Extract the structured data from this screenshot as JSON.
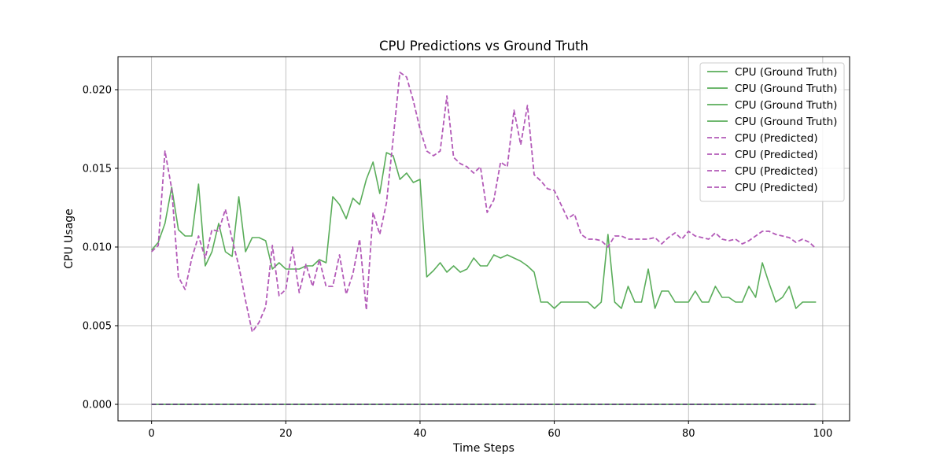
{
  "chart_data": {
    "type": "line",
    "title": "CPU Predictions vs Ground Truth",
    "xlabel": "Time Steps",
    "ylabel": "CPU Usage",
    "xlim": [
      -5,
      104
    ],
    "ylim": [
      -0.00105,
      0.0221
    ],
    "x_ticks": [
      0,
      20,
      40,
      60,
      80,
      100
    ],
    "y_ticks": [
      0.0,
      0.005,
      0.01,
      0.015,
      0.02
    ],
    "y_tick_labels": [
      "0.000",
      "0.005",
      "0.010",
      "0.015",
      "0.020"
    ],
    "grid": true,
    "legend_position": "top-right",
    "colors": {
      "ground_truth": "#5aad5a",
      "predicted": "#b35ab8",
      "zero_line_dark": "#5a2a7a"
    },
    "series": [
      {
        "name": "CPU (Ground Truth)",
        "style": "solid",
        "color": "#5aad5a",
        "values": [
          0.0098,
          0.0103,
          0.0115,
          0.0138,
          0.0111,
          0.0107,
          0.0107,
          0.014,
          0.0088,
          0.0097,
          0.0115,
          0.0097,
          0.0094,
          0.0132,
          0.0097,
          0.0106,
          0.0106,
          0.0104,
          0.0086,
          0.009,
          0.0086,
          0.0086,
          0.0086,
          0.0088,
          0.0088,
          0.0092,
          0.009,
          0.0132,
          0.0127,
          0.0118,
          0.0131,
          0.0127,
          0.0143,
          0.0154,
          0.0134,
          0.016,
          0.0158,
          0.0143,
          0.0147,
          0.0141,
          0.0143,
          0.0081,
          0.0085,
          0.009,
          0.0084,
          0.0088,
          0.0084,
          0.0086,
          0.0093,
          0.0088,
          0.0088,
          0.0095,
          0.0093,
          0.0095,
          0.0093,
          0.0091,
          0.0088,
          0.0084,
          0.0065,
          0.0065,
          0.0061,
          0.0065,
          0.0065,
          0.0065,
          0.0065,
          0.0065,
          0.0061,
          0.0065,
          0.0108,
          0.0065,
          0.0061,
          0.0075,
          0.0065,
          0.0065,
          0.0086,
          0.0061,
          0.0072,
          0.0072,
          0.0065,
          0.0065,
          0.0065,
          0.0072,
          0.0065,
          0.0065,
          0.0075,
          0.0068,
          0.0068,
          0.0065,
          0.0065,
          0.0075,
          0.0068,
          0.009,
          0.0077,
          0.0065,
          0.0068,
          0.0075,
          0.0061,
          0.0065,
          0.0065,
          0.0065
        ]
      },
      {
        "name": "CPU (Ground Truth)",
        "style": "solid",
        "color": "#5aad5a",
        "values": []
      },
      {
        "name": "CPU (Ground Truth)",
        "style": "solid",
        "color": "#5aad5a",
        "values": []
      },
      {
        "name": "CPU (Ground Truth)",
        "style": "solid",
        "color": "#5aad5a",
        "values": []
      },
      {
        "name": "CPU (Predicted)",
        "style": "dashed",
        "color": "#b35ab8",
        "values": [
          0.0097,
          0.0101,
          0.0161,
          0.0137,
          0.0081,
          0.0073,
          0.0093,
          0.0107,
          0.0093,
          0.0111,
          0.011,
          0.0124,
          0.0105,
          0.0088,
          0.0066,
          0.0046,
          0.0052,
          0.0062,
          0.0101,
          0.0069,
          0.0073,
          0.01,
          0.0071,
          0.0089,
          0.0075,
          0.0092,
          0.0075,
          0.0075,
          0.0095,
          0.007,
          0.0083,
          0.0105,
          0.006,
          0.0122,
          0.0108,
          0.0128,
          0.0169,
          0.0211,
          0.0208,
          0.0193,
          0.0175,
          0.0161,
          0.0158,
          0.0161,
          0.0196,
          0.0157,
          0.0153,
          0.0151,
          0.0147,
          0.0151,
          0.0122,
          0.013,
          0.0154,
          0.0151,
          0.0187,
          0.0165,
          0.019,
          0.0146,
          0.0142,
          0.0137,
          0.0136,
          0.0127,
          0.0118,
          0.0121,
          0.0108,
          0.0105,
          0.0105,
          0.0104,
          0.01,
          0.0107,
          0.0107,
          0.0105,
          0.0105,
          0.0105,
          0.0105,
          0.0106,
          0.0102,
          0.0106,
          0.0109,
          0.0105,
          0.011,
          0.0107,
          0.0106,
          0.0105,
          0.0109,
          0.0105,
          0.0104,
          0.0105,
          0.0102,
          0.0104,
          0.0107,
          0.011,
          0.011,
          0.0108,
          0.0107,
          0.0106,
          0.0103,
          0.0105,
          0.0103,
          0.0099
        ]
      },
      {
        "name": "CPU (Predicted)",
        "style": "dashed",
        "color": "#b35ab8",
        "values": []
      },
      {
        "name": "CPU (Predicted)",
        "style": "dashed",
        "color": "#b35ab8",
        "values": []
      },
      {
        "name": "CPU (Predicted)",
        "style": "dashed",
        "color": "#b35ab8",
        "values": []
      }
    ],
    "zero_series": {
      "x_range": [
        0,
        99
      ],
      "value": 0.0
    }
  }
}
